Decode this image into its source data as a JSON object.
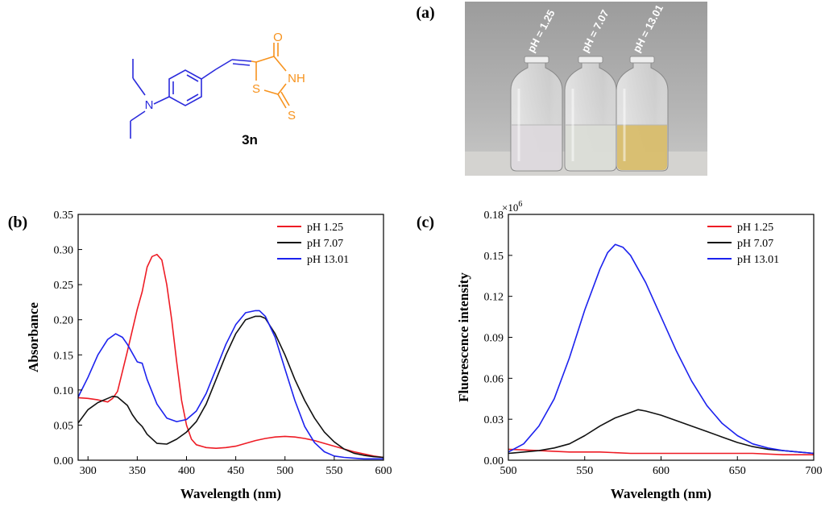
{
  "panel_labels": {
    "a": "(a)",
    "b": "(b)",
    "c": "(c)"
  },
  "colors": {
    "blue": "#2b2bdc",
    "orange": "#f7931e",
    "red": "#ee1c25",
    "black": "#111111",
    "series_blue": "#1c22ee"
  },
  "molecule": {
    "compound_label": "3n",
    "atoms": {
      "n_amine": "N",
      "o": "O",
      "nh": "NH",
      "s_ring": "S",
      "s_thione": "S"
    }
  },
  "photo": {
    "vials": [
      {
        "label": "pH = 1.25",
        "liquid": "#dcd8dc"
      },
      {
        "label": "pH = 7.07",
        "liquid": "#dadcd6"
      },
      {
        "label": "pH = 13.01",
        "liquid": "#d8bd6c"
      }
    ]
  },
  "chart_data": [
    {
      "type": "line",
      "panel": "(b)",
      "xlabel": "Wavelength (nm)",
      "ylabel": "Absorbance",
      "xlim": [
        290,
        600
      ],
      "ylim": [
        0,
        0.35
      ],
      "xticks": [
        300,
        350,
        400,
        450,
        500,
        550,
        600
      ],
      "yticks": [
        0.0,
        0.05,
        0.1,
        0.15,
        0.2,
        0.25,
        0.3,
        0.35
      ],
      "xtick_labels": [
        "300",
        "350",
        "400",
        "450",
        "500",
        "550",
        "600"
      ],
      "ytick_labels": [
        "0.00",
        "0.05",
        "0.10",
        "0.15",
        "0.20",
        "0.25",
        "0.30",
        "0.35"
      ],
      "legend_position": "top-right",
      "series": [
        {
          "name": "pH 1.25",
          "color": "#ee1c25",
          "x": [
            290,
            300,
            310,
            320,
            325,
            330,
            340,
            350,
            355,
            360,
            365,
            370,
            375,
            380,
            385,
            390,
            395,
            400,
            405,
            410,
            420,
            430,
            440,
            450,
            460,
            470,
            480,
            490,
            500,
            510,
            520,
            530,
            540,
            550,
            560,
            570,
            580,
            590,
            600
          ],
          "y": [
            0.089,
            0.088,
            0.086,
            0.083,
            0.088,
            0.098,
            0.155,
            0.215,
            0.24,
            0.275,
            0.29,
            0.293,
            0.285,
            0.25,
            0.2,
            0.14,
            0.085,
            0.05,
            0.03,
            0.022,
            0.018,
            0.017,
            0.018,
            0.02,
            0.024,
            0.028,
            0.031,
            0.033,
            0.034,
            0.033,
            0.031,
            0.028,
            0.024,
            0.02,
            0.016,
            0.012,
            0.009,
            0.006,
            0.004
          ]
        },
        {
          "name": "pH 7.07",
          "color": "#111111",
          "x": [
            290,
            300,
            310,
            320,
            325,
            330,
            340,
            345,
            350,
            355,
            360,
            370,
            380,
            390,
            400,
            410,
            420,
            430,
            440,
            450,
            460,
            470,
            475,
            480,
            490,
            500,
            510,
            520,
            530,
            540,
            550,
            560,
            570,
            580,
            590,
            600
          ],
          "y": [
            0.053,
            0.072,
            0.082,
            0.088,
            0.091,
            0.09,
            0.078,
            0.065,
            0.055,
            0.048,
            0.037,
            0.024,
            0.023,
            0.03,
            0.04,
            0.055,
            0.08,
            0.115,
            0.15,
            0.18,
            0.2,
            0.205,
            0.205,
            0.202,
            0.18,
            0.15,
            0.115,
            0.085,
            0.06,
            0.04,
            0.026,
            0.016,
            0.01,
            0.007,
            0.005,
            0.004
          ]
        },
        {
          "name": "pH 13.01",
          "color": "#1c22ee",
          "x": [
            290,
            300,
            310,
            320,
            328,
            335,
            340,
            350,
            355,
            360,
            370,
            380,
            390,
            400,
            410,
            420,
            430,
            440,
            450,
            460,
            470,
            474,
            480,
            490,
            500,
            510,
            520,
            530,
            540,
            550,
            560,
            570,
            580,
            590,
            600
          ],
          "y": [
            0.09,
            0.118,
            0.15,
            0.172,
            0.18,
            0.175,
            0.165,
            0.14,
            0.138,
            0.115,
            0.08,
            0.06,
            0.055,
            0.058,
            0.07,
            0.095,
            0.13,
            0.165,
            0.193,
            0.21,
            0.213,
            0.213,
            0.205,
            0.175,
            0.13,
            0.085,
            0.048,
            0.025,
            0.012,
            0.006,
            0.004,
            0.003,
            0.002,
            0.002,
            0.002
          ]
        }
      ]
    },
    {
      "type": "line",
      "panel": "(c)",
      "xlabel": "Wavelength (nm)",
      "ylabel": "Fluorescence intensity",
      "multiplier": "×10",
      "multiplier_exp": "6",
      "xlim": [
        500,
        700
      ],
      "ylim": [
        0,
        0.18
      ],
      "xticks": [
        500,
        550,
        600,
        650,
        700
      ],
      "yticks": [
        0.0,
        0.03,
        0.06,
        0.09,
        0.12,
        0.15,
        0.18
      ],
      "xtick_labels": [
        "500",
        "550",
        "600",
        "650",
        "700"
      ],
      "ytick_labels": [
        "0.00",
        "0.03",
        "0.06",
        "0.09",
        "0.12",
        "0.15",
        "0.18"
      ],
      "legend_position": "top-right",
      "series": [
        {
          "name": "pH 1.25",
          "color": "#ee1c25",
          "x": [
            500,
            520,
            540,
            560,
            580,
            600,
            620,
            640,
            660,
            680,
            700
          ],
          "y": [
            0.008,
            0.007,
            0.006,
            0.006,
            0.005,
            0.005,
            0.005,
            0.005,
            0.005,
            0.004,
            0.004
          ]
        },
        {
          "name": "pH 7.07",
          "color": "#111111",
          "x": [
            500,
            510,
            520,
            530,
            540,
            550,
            560,
            570,
            580,
            585,
            590,
            600,
            610,
            620,
            630,
            640,
            650,
            660,
            670,
            680,
            690,
            700
          ],
          "y": [
            0.005,
            0.006,
            0.007,
            0.009,
            0.012,
            0.018,
            0.025,
            0.031,
            0.035,
            0.037,
            0.036,
            0.033,
            0.029,
            0.025,
            0.021,
            0.017,
            0.013,
            0.01,
            0.008,
            0.007,
            0.006,
            0.005
          ]
        },
        {
          "name": "pH 13.01",
          "color": "#1c22ee",
          "x": [
            500,
            510,
            520,
            530,
            540,
            550,
            560,
            565,
            570,
            575,
            580,
            590,
            600,
            610,
            620,
            630,
            640,
            650,
            660,
            670,
            680,
            690,
            700
          ],
          "y": [
            0.006,
            0.012,
            0.025,
            0.045,
            0.075,
            0.11,
            0.14,
            0.152,
            0.158,
            0.156,
            0.15,
            0.13,
            0.105,
            0.08,
            0.058,
            0.04,
            0.027,
            0.018,
            0.012,
            0.009,
            0.007,
            0.006,
            0.005
          ]
        }
      ]
    }
  ]
}
